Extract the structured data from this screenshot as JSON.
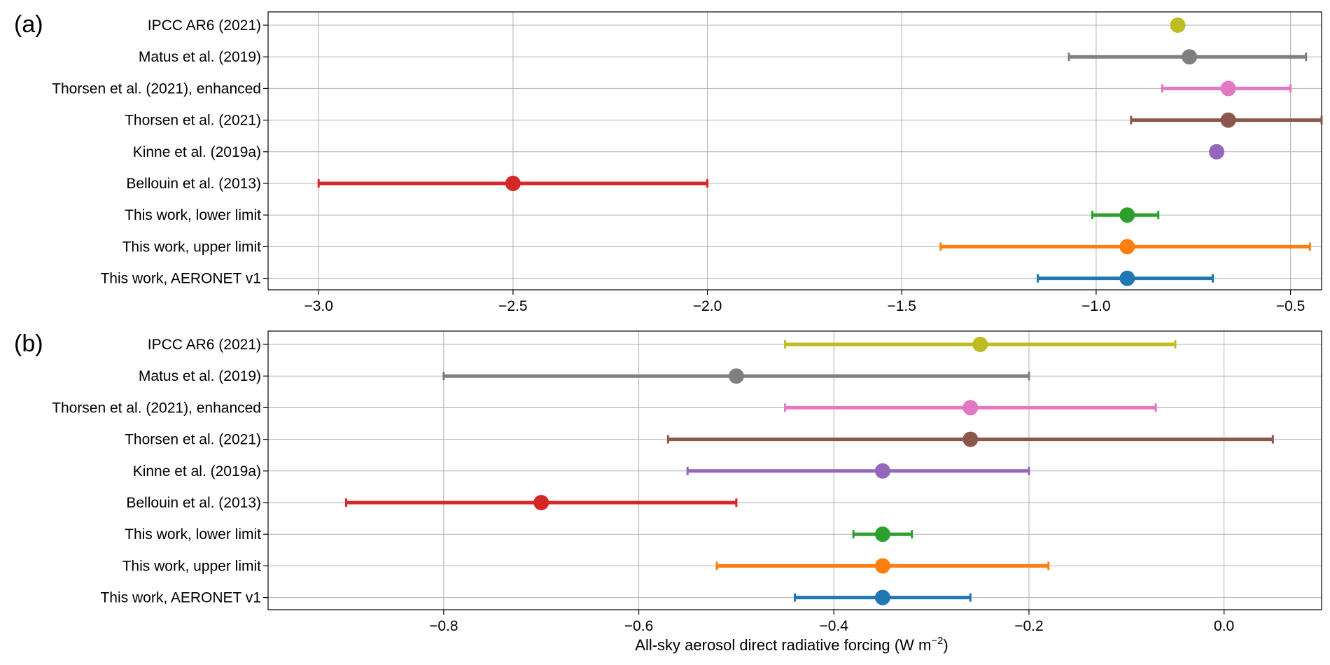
{
  "chart_data": [
    {
      "type": "errorbar",
      "panel_label": "(a)",
      "xlabel": "",
      "ylabel": "",
      "xlim": [
        -3.13,
        -0.42
      ],
      "grid": true,
      "ticks": [
        {
          "value": -3.0,
          "label": "−3.0"
        },
        {
          "value": -2.5,
          "label": "−2.5"
        },
        {
          "value": -2.0,
          "label": "−2.0"
        },
        {
          "value": -1.5,
          "label": "−1.5"
        },
        {
          "value": -1.0,
          "label": "−1.0"
        },
        {
          "value": -0.5,
          "label": "−0.5"
        }
      ],
      "series": [
        {
          "name": "IPCC AR6 (2021)",
          "color": "#bcbd22",
          "value": -0.79,
          "low": null,
          "high": null
        },
        {
          "name": "Matus et al. (2019)",
          "color": "#7f7f7f",
          "value": -0.76,
          "low": -1.07,
          "high": -0.46
        },
        {
          "name": "Thorsen et al. (2021), enhanced",
          "color": "#e377c2",
          "value": -0.66,
          "low": -0.83,
          "high": -0.5
        },
        {
          "name": "Thorsen et al. (2021)",
          "color": "#8c564b",
          "value": -0.66,
          "low": -0.91,
          "high": -0.42
        },
        {
          "name": "Kinne et al. (2019a)",
          "color": "#9467bd",
          "value": -0.69,
          "low": null,
          "high": null
        },
        {
          "name": "Bellouin et al. (2013)",
          "color": "#d62728",
          "value": -2.5,
          "low": -3.0,
          "high": -2.0
        },
        {
          "name": "This work, lower limit",
          "color": "#2ca02c",
          "value": -0.92,
          "low": -1.01,
          "high": -0.84
        },
        {
          "name": "This work, upper limit",
          "color": "#ff7f0e",
          "value": -0.92,
          "low": -1.4,
          "high": -0.45
        },
        {
          "name": "This work, AERONET v1",
          "color": "#1f77b4",
          "value": -0.92,
          "low": -1.15,
          "high": -0.7
        }
      ]
    },
    {
      "type": "errorbar",
      "panel_label": "(b)",
      "xlabel": "All-sky aerosol direct radiative forcing (W m",
      "xlabel_superscript": "−2",
      "xlabel_suffix": ")",
      "ylabel": "",
      "xlim": [
        -0.98,
        0.1
      ],
      "grid": true,
      "ticks": [
        {
          "value": -0.8,
          "label": "−0.8"
        },
        {
          "value": -0.6,
          "label": "−0.6"
        },
        {
          "value": -0.4,
          "label": "−0.4"
        },
        {
          "value": -0.2,
          "label": "−0.2"
        },
        {
          "value": 0.0,
          "label": "0.0"
        }
      ],
      "series": [
        {
          "name": "IPCC AR6 (2021)",
          "color": "#bcbd22",
          "value": -0.25,
          "low": -0.45,
          "high": -0.05
        },
        {
          "name": "Matus et al. (2019)",
          "color": "#7f7f7f",
          "value": -0.5,
          "low": -0.8,
          "high": -0.2
        },
        {
          "name": "Thorsen et al. (2021), enhanced",
          "color": "#e377c2",
          "value": -0.26,
          "low": -0.45,
          "high": -0.07
        },
        {
          "name": "Thorsen et al. (2021)",
          "color": "#8c564b",
          "value": -0.26,
          "low": -0.57,
          "high": 0.05
        },
        {
          "name": "Kinne et al. (2019a)",
          "color": "#9467bd",
          "value": -0.35,
          "low": -0.55,
          "high": -0.2
        },
        {
          "name": "Bellouin et al. (2013)",
          "color": "#d62728",
          "value": -0.7,
          "low": -0.9,
          "high": -0.5
        },
        {
          "name": "This work, lower limit",
          "color": "#2ca02c",
          "value": -0.35,
          "low": -0.38,
          "high": -0.32
        },
        {
          "name": "This work, upper limit",
          "color": "#ff7f0e",
          "value": -0.35,
          "low": -0.52,
          "high": -0.18
        },
        {
          "name": "This work, AERONET v1",
          "color": "#1f77b4",
          "value": -0.35,
          "low": -0.44,
          "high": -0.26
        }
      ]
    }
  ]
}
